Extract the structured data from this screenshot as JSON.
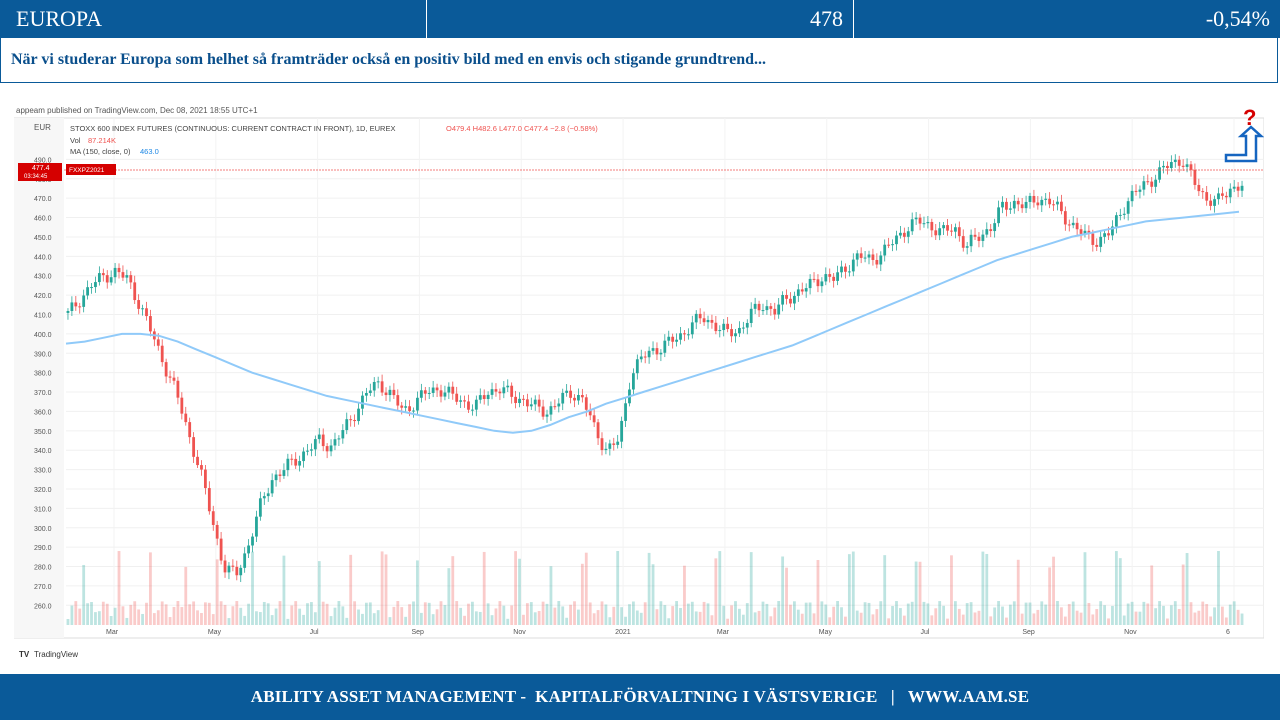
{
  "header": {
    "name": "EUROPA",
    "value": "478",
    "change": "-0,54%"
  },
  "subtitle": "När vi studerar Europa som helhet så framträder också en positiv bild med en envis och stigande grundtrend...",
  "chart": {
    "published": "appeam published on TradingView.com, Dec 08, 2021 18:55 UTC+1",
    "currency": "EUR",
    "legend_line1": "STOXX 600 INDEX FUTURES (CONTINUOUS: CURRENT CONTRACT IN FRONT), 1D, EUREX",
    "ohlc": "O479.4 H482.6 L477.0 C477.4 −2.8 (−0.58%)",
    "vol_label": "Vol",
    "vol_value": "87.214K",
    "ma_label": "MA (150, close, 0)",
    "ma_value": "463.0",
    "price_tag": "477.4",
    "price_tag_time": "03:34:45",
    "contract_tag": "FXXPZ2021",
    "question_mark": "?",
    "brand": "TradingView",
    "colors": {
      "up": "#26a69a",
      "down": "#ef5350",
      "ma": "#90caf9",
      "marker": "#d50000",
      "arrow": "#1565c0"
    }
  },
  "chart_data": {
    "type": "line",
    "ylim": [
      255,
      500
    ],
    "ylabels": [
      "490.0",
      "480.0",
      "470.0",
      "460.0",
      "450.0",
      "440.0",
      "430.0",
      "420.0",
      "410.0",
      "400.0",
      "390.0",
      "380.0",
      "370.0",
      "360.0",
      "350.0",
      "340.0",
      "330.0",
      "320.0",
      "310.0",
      "300.0",
      "290.0",
      "280.0",
      "270.0",
      "260.0"
    ],
    "xlabels": [
      "Mar",
      "May",
      "Jul",
      "Sep",
      "Nov",
      "2021",
      "Mar",
      "May",
      "Jul",
      "Sep",
      "Nov",
      "6"
    ],
    "series": [
      {
        "values": [
          410,
          418,
          425,
          430,
          432,
          428,
          415,
          400,
          385,
          370,
          350,
          330,
          305,
          280,
          275,
          290,
          310,
          325,
          330,
          335,
          340,
          345,
          342,
          350,
          360,
          370,
          375,
          368,
          360,
          365,
          370,
          372,
          368,
          365,
          362,
          370,
          372,
          368,
          366,
          362,
          360,
          365,
          370,
          366,
          350,
          340,
          345,
          380,
          388,
          392,
          395,
          398,
          405,
          408,
          405,
          400,
          402,
          410,
          415,
          412,
          418,
          422,
          425,
          430,
          428,
          435,
          440,
          438,
          442,
          448,
          455,
          458,
          456,
          452,
          455,
          445,
          450,
          455,
          465,
          468,
          466,
          470,
          468,
          462,
          455,
          450,
          448,
          452,
          465,
          472,
          478,
          482,
          488,
          490,
          478,
          470,
          468,
          475,
          477
        ]
      },
      {
        "values": [
          395,
          396,
          398,
          400,
          400,
          399,
          396,
          392,
          388,
          384,
          380,
          377,
          374,
          371,
          368,
          366,
          364,
          362,
          360,
          358,
          356,
          354,
          352,
          350,
          349,
          350,
          353,
          357,
          360,
          364,
          367,
          370,
          373,
          376,
          379,
          382,
          385,
          388,
          391,
          394,
          398,
          402,
          406,
          410,
          414,
          418,
          422,
          426,
          430,
          434,
          438,
          441,
          444,
          447,
          450,
          452,
          454,
          456,
          458,
          459,
          460,
          461,
          462,
          463
        ]
      }
    ]
  },
  "footer": "ABILITY ASSET MANAGEMENT -  KAPITALFÖRVALTNING I VÄSTSVERIGE   |   WWW.AAM.SE"
}
